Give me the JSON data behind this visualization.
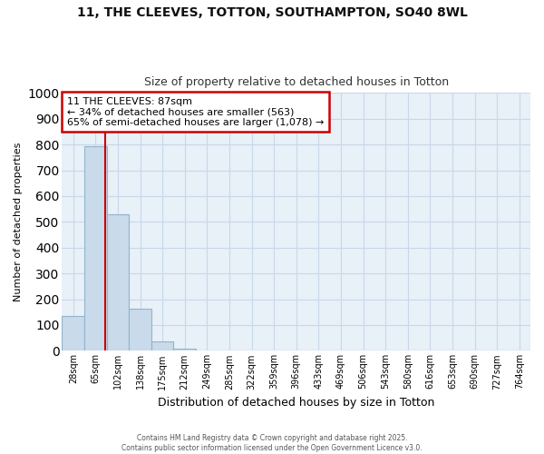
{
  "title_line1": "11, THE CLEEVES, TOTTON, SOUTHAMPTON, SO40 8WL",
  "title_line2": "Size of property relative to detached houses in Totton",
  "categories": [
    "28sqm",
    "65sqm",
    "102sqm",
    "138sqm",
    "175sqm",
    "212sqm",
    "249sqm",
    "285sqm",
    "322sqm",
    "359sqm",
    "396sqm",
    "433sqm",
    "469sqm",
    "506sqm",
    "543sqm",
    "580sqm",
    "616sqm",
    "653sqm",
    "690sqm",
    "727sqm",
    "764sqm"
  ],
  "values": [
    135,
    795,
    530,
    162,
    38,
    10,
    2,
    0,
    0,
    0,
    0,
    0,
    0,
    0,
    0,
    0,
    0,
    0,
    0,
    0,
    0
  ],
  "bar_color": "#c9daea",
  "bar_edge_color": "#92b4cc",
  "red_line_x": 1.45,
  "ylabel": "Number of detached properties",
  "xlabel": "Distribution of detached houses by size in Totton",
  "ylim": [
    0,
    1000
  ],
  "yticks": [
    0,
    100,
    200,
    300,
    400,
    500,
    600,
    700,
    800,
    900,
    1000
  ],
  "annotation_text": "11 THE CLEEVES: 87sqm\n← 34% of detached houses are smaller (563)\n65% of semi-detached houses are larger (1,078) →",
  "annotation_box_facecolor": "#ffffff",
  "annotation_box_edgecolor": "#cc0000",
  "plot_bg_color": "#e8f0f8",
  "fig_bg_color": "#ffffff",
  "grid_color": "#c8d8e8",
  "footer_line1": "Contains HM Land Registry data © Crown copyright and database right 2025.",
  "footer_line2": "Contains public sector information licensed under the Open Government Licence v3.0."
}
